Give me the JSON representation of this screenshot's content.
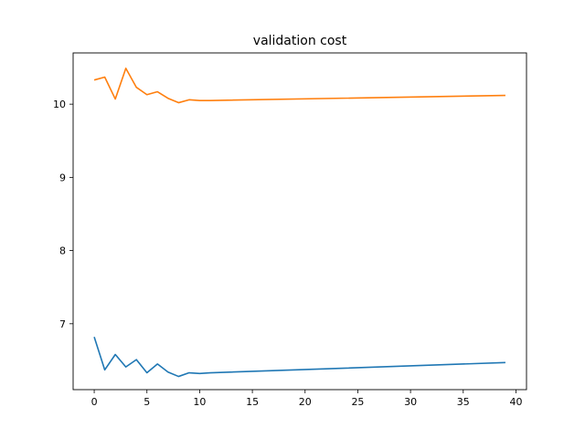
{
  "chart_data": {
    "type": "line",
    "title": "validation cost",
    "xlabel": "",
    "ylabel": "",
    "xlim": [
      -2.0,
      41.0
    ],
    "ylim": [
      6.1,
      10.7
    ],
    "xticks": [
      0,
      5,
      10,
      15,
      20,
      25,
      30,
      35,
      40
    ],
    "yticks": [
      7,
      8,
      9,
      10
    ],
    "grid": false,
    "legend": "none",
    "series": [
      {
        "color": "#1f77b4",
        "x": [
          0,
          1,
          2,
          3,
          4,
          5,
          6,
          7,
          8,
          9,
          10,
          11,
          39
        ],
        "y": [
          6.82,
          6.37,
          6.58,
          6.41,
          6.51,
          6.33,
          6.45,
          6.34,
          6.28,
          6.33,
          6.32,
          6.33,
          6.47
        ]
      },
      {
        "color": "#ff7f0e",
        "x": [
          0,
          1,
          2,
          3,
          4,
          5,
          6,
          7,
          8,
          9,
          10,
          11,
          39
        ],
        "y": [
          10.33,
          10.37,
          10.07,
          10.49,
          10.23,
          10.13,
          10.17,
          10.08,
          10.02,
          10.06,
          10.05,
          10.05,
          10.12
        ]
      }
    ]
  }
}
